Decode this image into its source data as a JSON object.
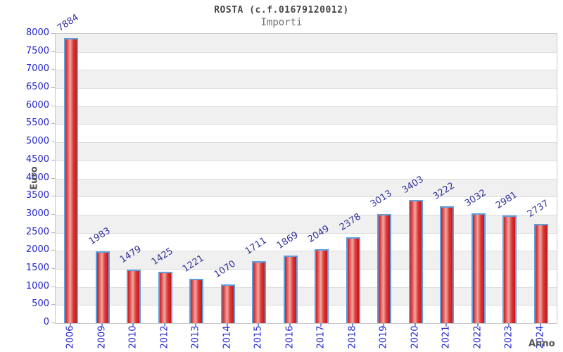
{
  "header": {
    "title": "ROSTA (c.f.01679120012)",
    "subtitle": "Importi"
  },
  "chart_data": {
    "type": "bar",
    "title": "ROSTA (c.f.01679120012)",
    "subtitle": "Importi",
    "categories": [
      "2006",
      "2009",
      "2010",
      "2012",
      "2013",
      "2014",
      "2015",
      "2016",
      "2017",
      "2018",
      "2019",
      "2020",
      "2021",
      "2022",
      "2023",
      "2024"
    ],
    "values": [
      7884,
      1983,
      1479,
      1425,
      1221,
      1070,
      1711,
      1869,
      2049,
      2378,
      3013,
      3403,
      3222,
      3032,
      2981,
      2737
    ],
    "xlabel": "Anno",
    "ylabel": "Euro",
    "ylim": [
      0,
      8000
    ],
    "ytick_step": 500,
    "ytick_labels": [
      "0",
      "500",
      "1000",
      "1500",
      "2000",
      "2500",
      "3000",
      "3500",
      "4000",
      "4500",
      "5000",
      "5500",
      "6000",
      "6500",
      "7000",
      "7500",
      "8000"
    ],
    "grid": "horizontal-bands-alternating",
    "legend": "none",
    "colors": {
      "bar_fill": "#e03030",
      "bar_fill_highlight": "#eda9a2",
      "bar_fill_dark": "#bd1a1a",
      "bar_border": "#5f9fdd",
      "tick_label": "#2525cd",
      "value_label": "#33339b",
      "axis_title": "#555555",
      "band_shaded": "#f0f0f0",
      "band_plain": "#ffffff",
      "gridline": "#dcdcdc",
      "plot_border": "#c9c9c9"
    }
  }
}
